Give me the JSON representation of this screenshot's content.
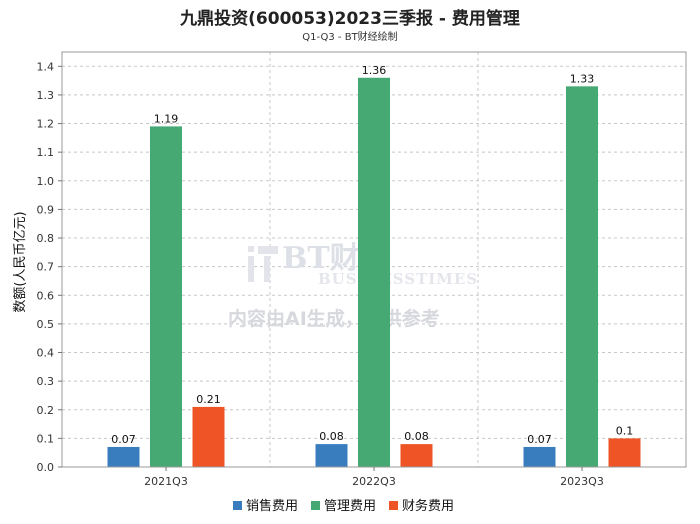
{
  "chart_data": {
    "type": "bar",
    "title": "九鼎投资(600053)2023三季报 - 费用管理",
    "subtitle": "Q1-Q3 - BT财经绘制",
    "categories": [
      "2021Q3",
      "2022Q3",
      "2023Q3"
    ],
    "series": [
      {
        "name": "销售费用",
        "color": "#3a7dbf",
        "values": [
          0.07,
          0.08,
          0.07
        ]
      },
      {
        "name": "管理费用",
        "color": "#46a974",
        "values": [
          1.19,
          1.36,
          1.33
        ]
      },
      {
        "name": "财务费用",
        "color": "#ef5426",
        "values": [
          0.21,
          0.08,
          0.1
        ]
      }
    ],
    "xlabel": "",
    "ylabel": "数额(人民币亿元)",
    "ylim": [
      0,
      1.45
    ],
    "yticks": [
      0.0,
      0.1,
      0.2,
      0.3,
      0.4,
      0.5,
      0.6,
      0.7,
      0.8,
      0.9,
      1.0,
      1.1,
      1.2,
      1.3,
      1.4
    ],
    "grid": true,
    "legend_position": "bottom"
  },
  "watermark": {
    "logo_text": "BT财经",
    "brand_text": "BUSINESSTIMES",
    "notice": "内容由AI生成，仅供参考"
  }
}
